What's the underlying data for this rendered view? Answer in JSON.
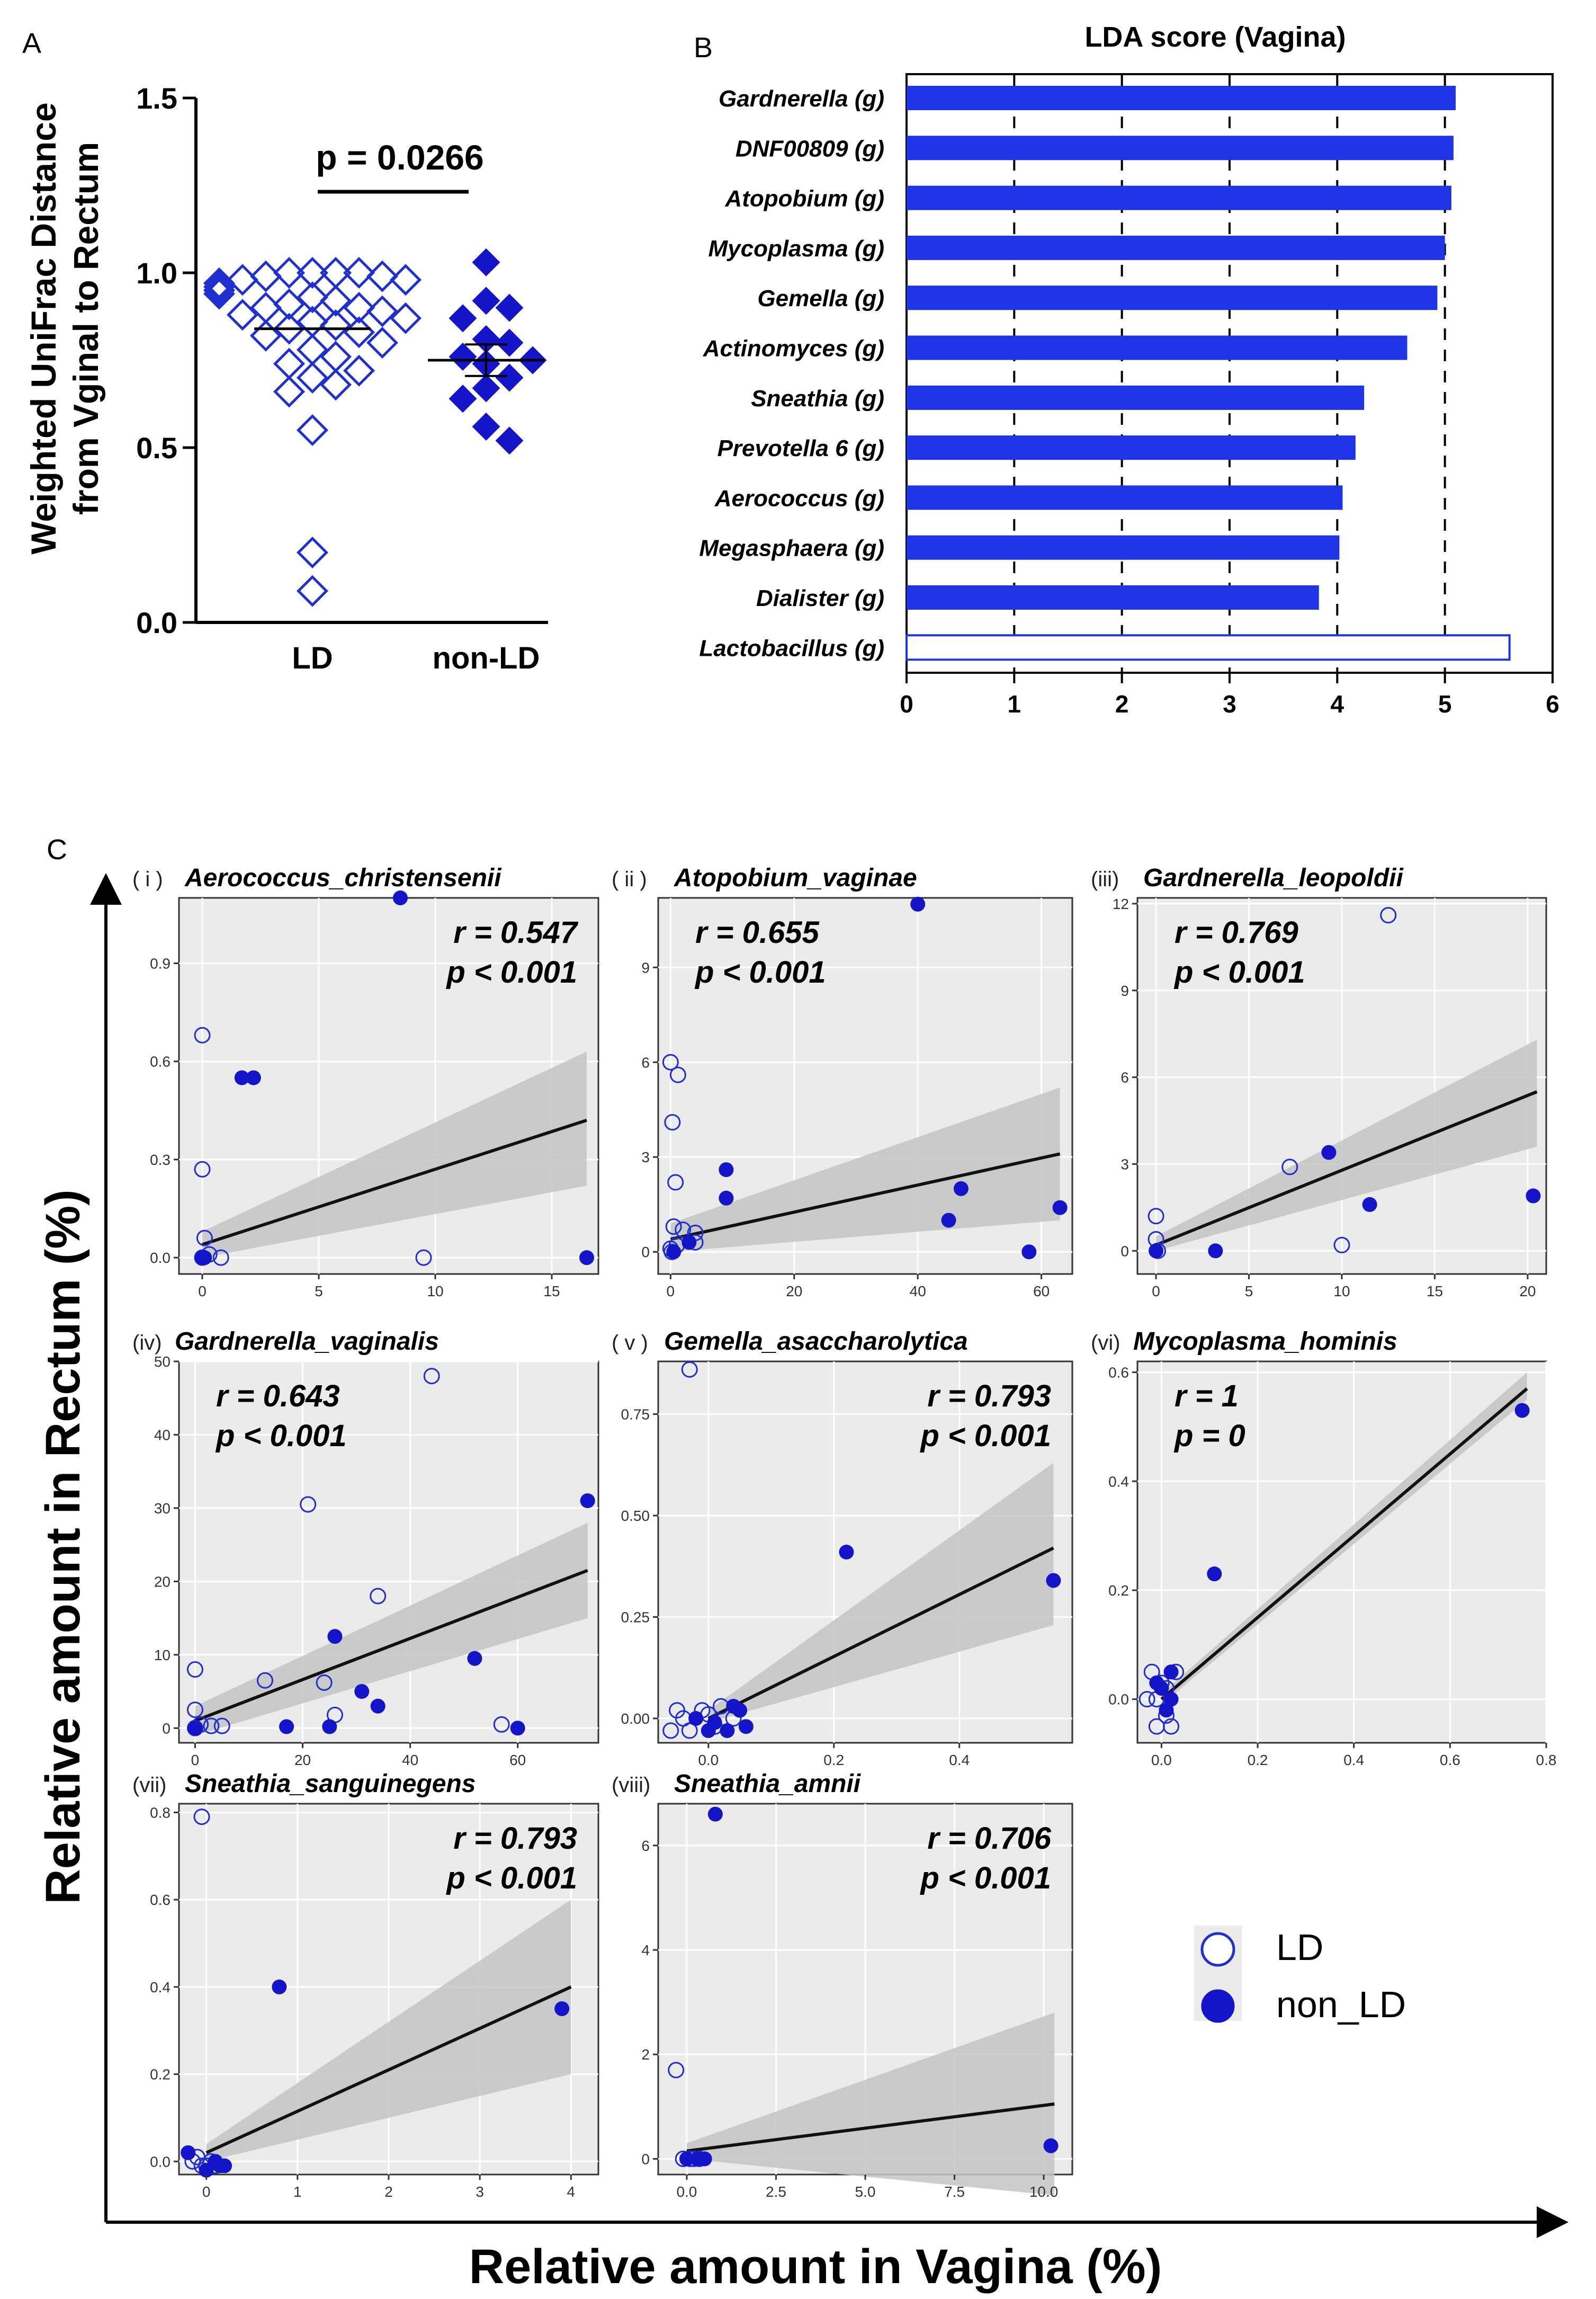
{
  "colors": {
    "ld": "#1f2fd0",
    "nonld": "#1414c8",
    "bar": "#1f34e6",
    "panel_bg": "#ebebeb",
    "band": "#c4c4c4",
    "line": "#111111"
  },
  "panel_a": {
    "label": "A",
    "ylabel_line1": "Weighted UniFrac Distance",
    "ylabel_line2": "from Vginal to Rectum",
    "pvalue": "p = 0.0266",
    "ticks": [
      "0.0",
      "0.5",
      "1.0",
      "1.5"
    ],
    "groups": [
      "LD",
      "non-LD"
    ]
  },
  "panel_b": {
    "label": "B",
    "title": "LDA score (Vagina)",
    "ticks": [
      "0",
      "1",
      "2",
      "3",
      "4",
      "5",
      "6"
    ]
  },
  "panel_c": {
    "label": "C",
    "xlabel": "Relative amount in Vagina (%)",
    "ylabel": "Relative amount in Rectum (%)",
    "legend": {
      "ld": "LD",
      "nonld": "non_LD"
    }
  },
  "chart_data": [
    {
      "type": "scatter",
      "id": "A",
      "ylim": [
        0,
        1.5
      ],
      "groups": [
        {
          "name": "LD",
          "mean": 0.84,
          "values": [
            1.0,
            1.0,
            1.0,
            1.0,
            0.99,
            0.99,
            0.98,
            0.98,
            0.97,
            0.96,
            0.95,
            0.95,
            0.94,
            0.93,
            0.92,
            0.91,
            0.9,
            0.9,
            0.89,
            0.88,
            0.87,
            0.86,
            0.85,
            0.84,
            0.83,
            0.82,
            0.8,
            0.78,
            0.76,
            0.74,
            0.72,
            0.7,
            0.68,
            0.66,
            0.55,
            0.2,
            0.09
          ]
        },
        {
          "name": "non-LD",
          "mean": 0.75,
          "sem": 0.045,
          "values": [
            1.03,
            0.92,
            0.9,
            0.87,
            0.81,
            0.8,
            0.76,
            0.75,
            0.74,
            0.7,
            0.67,
            0.64,
            0.56,
            0.52
          ]
        }
      ]
    },
    {
      "type": "bar",
      "id": "B",
      "orientation": "horizontal",
      "xlim": [
        0,
        6
      ],
      "categories": [
        "Gardnerella (g)",
        "DNF00809 (g)",
        "Atopobium (g)",
        "Mycoplasma (g)",
        "Gemella (g)",
        "Actinomyces (g)",
        "Sneathia (g)",
        "Prevotella 6 (g)",
        "Aerococcus (g)",
        "Megasphaera (g)",
        "Dialister (g)",
        "Lactobacillus (g)"
      ],
      "values": [
        5.1,
        5.08,
        5.06,
        5.0,
        4.93,
        4.65,
        4.25,
        4.17,
        4.05,
        4.02,
        3.83,
        5.6
      ],
      "enriched": [
        "nonLD",
        "nonLD",
        "nonLD",
        "nonLD",
        "nonLD",
        "nonLD",
        "nonLD",
        "nonLD",
        "nonLD",
        "nonLD",
        "nonLD",
        "LD"
      ]
    },
    {
      "type": "scatter",
      "id": "C-i",
      "tag": "( i )",
      "title": "Aerococcus_christensenii",
      "r": "r = 0.547",
      "p": "p < 0.001",
      "xlim": [
        -1,
        17
      ],
      "ylim": [
        -0.05,
        1.1
      ],
      "xticks": [
        0,
        5,
        10,
        15
      ],
      "yticks": [
        0.0,
        0.3,
        0.6,
        0.9
      ],
      "ytick_labels": [
        "0.0",
        "0.3",
        "0.6",
        "0.9"
      ],
      "fit": {
        "x0": 0,
        "y0": 0.04,
        "x1": 16.5,
        "y1": 0.42,
        "band_lo": [
          0.0,
          0.22
        ],
        "band_hi": [
          0.08,
          0.63
        ]
      },
      "ld": [
        [
          0,
          0.68
        ],
        [
          0,
          0.27
        ],
        [
          0.1,
          0.06
        ],
        [
          0.3,
          0.01
        ],
        [
          0.8,
          0.0
        ],
        [
          9.5,
          0.0
        ],
        [
          0,
          0.0
        ]
      ],
      "nonld": [
        [
          8.5,
          1.1
        ],
        [
          1.7,
          0.55
        ],
        [
          2.2,
          0.55
        ],
        [
          16.5,
          0.0
        ],
        [
          0.1,
          0.0
        ],
        [
          0,
          0.0
        ]
      ]
    },
    {
      "type": "scatter",
      "id": "C-ii",
      "tag": "( ii )",
      "title": "Atopobium_vaginae",
      "r": "r = 0.655",
      "p": "p < 0.001",
      "xlim": [
        -2,
        65
      ],
      "ylim": [
        -0.7,
        11.2
      ],
      "xticks": [
        0,
        20,
        40,
        60
      ],
      "yticks": [
        0,
        3,
        6,
        9
      ],
      "ytick_labels": [
        "0",
        "3",
        "6",
        "9"
      ],
      "fit": {
        "x0": 0,
        "y0": 0.4,
        "x1": 63,
        "y1": 3.1,
        "band_lo": [
          0.0,
          1.0
        ],
        "band_hi": [
          0.9,
          5.2
        ]
      },
      "ld": [
        [
          0,
          6.0
        ],
        [
          1.2,
          5.6
        ],
        [
          0.3,
          4.1
        ],
        [
          0.8,
          2.2
        ],
        [
          0.5,
          0.8
        ],
        [
          2,
          0.7
        ],
        [
          4,
          0.6
        ],
        [
          0,
          0.1
        ],
        [
          1,
          0.2
        ],
        [
          4,
          0.3
        ],
        [
          0.2,
          0.0
        ]
      ],
      "nonld": [
        [
          40,
          11.0
        ],
        [
          9,
          2.6
        ],
        [
          9,
          1.7
        ],
        [
          47,
          2.0
        ],
        [
          63,
          1.4
        ],
        [
          45,
          1.0
        ],
        [
          58,
          0.0
        ],
        [
          3,
          0.3
        ],
        [
          0.5,
          0.0
        ]
      ]
    },
    {
      "type": "scatter",
      "id": "C-iii",
      "tag": "(iii)",
      "title": "Gardnerella_leopoldii",
      "r": "r = 0.769",
      "p": "p < 0.001",
      "xlim": [
        -1,
        21
      ],
      "ylim": [
        -0.8,
        12.2
      ],
      "xticks": [
        0,
        5,
        10,
        15,
        20
      ],
      "yticks": [
        0,
        3,
        6,
        9,
        12
      ],
      "ytick_labels": [
        "0",
        "3",
        "6",
        "9",
        "12"
      ],
      "fit": {
        "x0": 0,
        "y0": 0.2,
        "x1": 20.5,
        "y1": 5.5,
        "band_lo": [
          0.0,
          3.6
        ],
        "band_hi": [
          0.5,
          7.3
        ]
      },
      "ld": [
        [
          12.5,
          11.6
        ],
        [
          7.2,
          2.9
        ],
        [
          10,
          0.2
        ],
        [
          0,
          1.2
        ],
        [
          0,
          0.4
        ],
        [
          0.1,
          0.0
        ]
      ],
      "nonld": [
        [
          9.3,
          3.4
        ],
        [
          11.5,
          1.6
        ],
        [
          20.3,
          1.9
        ],
        [
          3.2,
          0.0
        ],
        [
          0,
          0.0
        ]
      ]
    },
    {
      "type": "scatter",
      "id": "C-iv",
      "tag": "(iv)",
      "title": "Gardnerella_vaginalis",
      "r": "r = 0.643",
      "p": "p < 0.001",
      "xlim": [
        -3,
        75
      ],
      "ylim": [
        -2,
        50
      ],
      "xticks": [
        0,
        20,
        40,
        60
      ],
      "yticks": [
        0,
        10,
        20,
        30,
        40,
        50
      ],
      "ytick_labels": [
        "0",
        "10",
        "20",
        "30",
        "40",
        "50"
      ],
      "fit": {
        "x0": 0,
        "y0": 1.0,
        "x1": 73,
        "y1": 21.5,
        "band_lo": [
          -1.0,
          15.0
        ],
        "band_hi": [
          3.0,
          28.0
        ]
      },
      "ld": [
        [
          44,
          48
        ],
        [
          21,
          30.5
        ],
        [
          34,
          18
        ],
        [
          13,
          6.5
        ],
        [
          0,
          8
        ],
        [
          0,
          2.5
        ],
        [
          1,
          0.5
        ],
        [
          3,
          0.3
        ],
        [
          5,
          0.3
        ],
        [
          26,
          1.8
        ],
        [
          57,
          0.5
        ],
        [
          24,
          6.2
        ],
        [
          0,
          0
        ]
      ],
      "nonld": [
        [
          73,
          31
        ],
        [
          26,
          12.5
        ],
        [
          52,
          9.5
        ],
        [
          31,
          5
        ],
        [
          34,
          3
        ],
        [
          17,
          0.2
        ],
        [
          25,
          0.2
        ],
        [
          60,
          0
        ],
        [
          0,
          0
        ]
      ]
    },
    {
      "type": "scatter",
      "id": "C-v",
      "tag": "( v )",
      "title": "Gemella_asaccharolytica",
      "r": "r = 0.793",
      "p": "p < 0.001",
      "xlim": [
        -0.08,
        0.58
      ],
      "ylim": [
        -0.06,
        0.88
      ],
      "xticks": [
        0,
        0.2,
        0.4
      ],
      "xtick_labels": [
        "0.0",
        "0.2",
        "0.4"
      ],
      "yticks": [
        0,
        0.25,
        0.5,
        0.75
      ],
      "ytick_labels": [
        "0.00",
        "0.25",
        "0.50",
        "0.75"
      ],
      "fit": {
        "x0": 0,
        "y0": 0.0,
        "x1": 0.55,
        "y1": 0.42,
        "band_lo": [
          -0.01,
          0.23
        ],
        "band_hi": [
          0.02,
          0.63
        ]
      },
      "ld": [
        [
          -0.03,
          0.86
        ],
        [
          -0.05,
          0.02
        ],
        [
          -0.03,
          -0.03
        ],
        [
          -0.01,
          0.02
        ],
        [
          0.01,
          -0.02
        ],
        [
          0.02,
          0.03
        ],
        [
          0.04,
          0.0
        ],
        [
          -0.06,
          -0.03
        ],
        [
          0.0,
          0.01
        ],
        [
          -0.04,
          0.0
        ]
      ],
      "nonld": [
        [
          0.22,
          0.41
        ],
        [
          0.55,
          0.34
        ],
        [
          0.05,
          0.02
        ],
        [
          0.06,
          -0.02
        ],
        [
          0.03,
          -0.03
        ],
        [
          0.0,
          -0.03
        ],
        [
          -0.02,
          0.0
        ],
        [
          0.04,
          0.03
        ],
        [
          0.01,
          -0.01
        ]
      ]
    },
    {
      "type": "scatter",
      "id": "C-vi",
      "tag": "(vi)",
      "title": "Mycoplasma_hominis",
      "r": "r = 1",
      "p": "p = 0",
      "xlim": [
        -0.05,
        0.8
      ],
      "ylim": [
        -0.08,
        0.62
      ],
      "xticks": [
        0,
        0.2,
        0.4,
        0.6,
        0.8
      ],
      "xtick_labels": [
        "0.0",
        "0.2",
        "0.4",
        "0.6",
        "0.8"
      ],
      "yticks": [
        0,
        0.2,
        0.4,
        0.6
      ],
      "ytick_labels": [
        "0.0",
        "0.2",
        "0.4",
        "0.6"
      ],
      "fit": {
        "x0": 0,
        "y0": 0.0,
        "x1": 0.76,
        "y1": 0.57,
        "band_lo": [
          -0.01,
          0.55
        ],
        "band_hi": [
          0.01,
          0.6
        ]
      },
      "ld": [
        [
          -0.02,
          0.05
        ],
        [
          -0.01,
          -0.05
        ],
        [
          0.01,
          0.02
        ],
        [
          0.02,
          -0.05
        ],
        [
          0.0,
          0.03
        ],
        [
          -0.03,
          0.0
        ],
        [
          0.03,
          0.05
        ],
        [
          0.01,
          -0.03
        ],
        [
          -0.01,
          0.0
        ]
      ],
      "nonld": [
        [
          0.75,
          0.53
        ],
        [
          0.11,
          0.23
        ],
        [
          0.02,
          0.05
        ],
        [
          0.0,
          0.02
        ],
        [
          0.01,
          -0.02
        ],
        [
          -0.01,
          0.03
        ],
        [
          0.02,
          0.0
        ]
      ]
    },
    {
      "type": "scatter",
      "id": "C-vii",
      "tag": "(vii)",
      "title": "Sneathia_sanguinegens",
      "r": "r = 0.793",
      "p": "p < 0.001",
      "xlim": [
        -0.3,
        4.3
      ],
      "ylim": [
        -0.03,
        0.82
      ],
      "xticks": [
        0,
        1,
        2,
        3,
        4
      ],
      "yticks": [
        0,
        0.2,
        0.4,
        0.6,
        0.8
      ],
      "ytick_labels": [
        "0.0",
        "0.2",
        "0.4",
        "0.6",
        "0.8"
      ],
      "fit": {
        "x0": 0,
        "y0": 0.02,
        "x1": 4.0,
        "y1": 0.4,
        "band_lo": [
          0.0,
          0.2
        ],
        "band_hi": [
          0.04,
          0.6
        ]
      },
      "ld": [
        [
          -0.05,
          0.79
        ],
        [
          -0.15,
          0.0
        ],
        [
          -0.1,
          0.01
        ],
        [
          0.0,
          -0.01
        ],
        [
          0.05,
          0.0
        ],
        [
          0.1,
          -0.01
        ],
        [
          -0.05,
          -0.01
        ]
      ],
      "nonld": [
        [
          0.8,
          0.4
        ],
        [
          3.9,
          0.35
        ],
        [
          0.2,
          -0.01
        ],
        [
          0.1,
          0.0
        ],
        [
          0.15,
          -0.01
        ],
        [
          -0.2,
          0.02
        ],
        [
          0.0,
          -0.02
        ]
      ]
    },
    {
      "type": "scatter",
      "id": "C-viii",
      "tag": "(viii)",
      "title": "Sneathia_amnii",
      "r": "r = 0.706",
      "p": "p < 0.001",
      "xlim": [
        -0.8,
        10.8
      ],
      "ylim": [
        -0.3,
        6.8
      ],
      "xticks": [
        0,
        2.5,
        5,
        7.5,
        10
      ],
      "xtick_labels": [
        "0.0",
        "2.5",
        "5.0",
        "7.5",
        "10.0"
      ],
      "yticks": [
        0,
        2,
        4,
        6
      ],
      "ytick_labels": [
        "0",
        "2",
        "4",
        "6"
      ],
      "fit": {
        "x0": 0,
        "y0": 0.15,
        "x1": 10.3,
        "y1": 1.05,
        "band_lo": [
          0.0,
          -0.7
        ],
        "band_hi": [
          0.3,
          2.8
        ]
      },
      "ld": [
        [
          -0.3,
          1.7
        ],
        [
          -0.1,
          0.0
        ],
        [
          0.1,
          0.0
        ],
        [
          0.2,
          0.0
        ],
        [
          0.35,
          0.0
        ]
      ],
      "nonld": [
        [
          0.8,
          6.6
        ],
        [
          10.2,
          0.25
        ],
        [
          0.0,
          0.0
        ],
        [
          0.3,
          0.0
        ],
        [
          0.5,
          0.0
        ]
      ]
    }
  ]
}
